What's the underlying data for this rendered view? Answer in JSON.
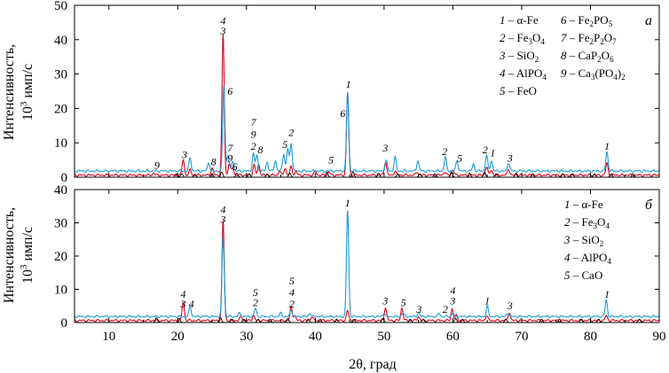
{
  "figure": {
    "xlabel": "2θ, град",
    "ylabel": "Интенсивность,",
    "ylabel_unit_prefix": "10",
    "ylabel_unit_exp": "3",
    "ylabel_unit_suffix": " имп/с"
  },
  "colors": {
    "red": "#e0001b",
    "blue": "#1a9ad6",
    "black": "#000000"
  },
  "chart_data": [
    {
      "type": "line",
      "panel_label": "а",
      "xlim": [
        5,
        90
      ],
      "ylim": [
        0,
        50
      ],
      "xticks": [
        10,
        20,
        30,
        40,
        50,
        60,
        70,
        80,
        90
      ],
      "yticks": [
        0,
        10,
        20,
        30,
        40,
        50
      ],
      "xtick_labels_shown": false,
      "grid": false,
      "legend": [
        {
          "num": "1",
          "sep": " – ",
          "parts": [
            [
              "α-Fe",
              ""
            ]
          ]
        },
        {
          "num": "2",
          "sep": " – ",
          "parts": [
            [
              "Fe",
              ""
            ],
            [
              "3",
              "sub"
            ],
            [
              "O",
              ""
            ],
            [
              "4",
              "sub"
            ]
          ]
        },
        {
          "num": "3",
          "sep": " – ",
          "parts": [
            [
              "SiO",
              ""
            ],
            [
              "2",
              "sub"
            ]
          ]
        },
        {
          "num": "4",
          "sep": " – ",
          "parts": [
            [
              "AlPO",
              ""
            ],
            [
              "4",
              "sub"
            ]
          ]
        },
        {
          "num": "5",
          "sep": " – ",
          "parts": [
            [
              "FeO",
              ""
            ]
          ]
        },
        {
          "num": "6",
          "sep": " – ",
          "parts": [
            [
              "Fe",
              ""
            ],
            [
              "2",
              "sub"
            ],
            [
              "PO",
              ""
            ],
            [
              "5",
              "sub"
            ]
          ]
        },
        {
          "num": "7",
          "sep": " – ",
          "parts": [
            [
              "Fe",
              ""
            ],
            [
              "2",
              "sub"
            ],
            [
              "P",
              ""
            ],
            [
              "2",
              "sub"
            ],
            [
              "O",
              ""
            ],
            [
              "7",
              "sub"
            ]
          ]
        },
        {
          "num": "8",
          "sep": " – ",
          "parts": [
            [
              "CaP",
              ""
            ],
            [
              "2",
              "sub"
            ],
            [
              "O",
              ""
            ],
            [
              "6",
              "sub"
            ]
          ]
        },
        {
          "num": "9",
          "sep": " – ",
          "parts": [
            [
              "Ca",
              ""
            ],
            [
              "3",
              "sub"
            ],
            [
              "(PO",
              ""
            ],
            [
              "4",
              "sub"
            ],
            [
              ")",
              ""
            ],
            [
              "2",
              "sub"
            ]
          ]
        }
      ],
      "series": [
        {
          "color": "red",
          "baseline": 0.6,
          "peaks": [
            [
              16.5,
              0.6
            ],
            [
              20.8,
              4.5
            ],
            [
              21.8,
              1.5
            ],
            [
              25.0,
              2.0
            ],
            [
              26.6,
              41
            ],
            [
              27.5,
              3.5
            ],
            [
              28.0,
              2.0
            ],
            [
              31.1,
              3.0
            ],
            [
              31.8,
              3.0
            ],
            [
              34.8,
              1.2
            ],
            [
              35.6,
              2.0
            ],
            [
              36.5,
              2.5
            ],
            [
              37.2,
              1.0
            ],
            [
              40.0,
              1.2
            ],
            [
              42.0,
              1.0
            ],
            [
              44.7,
              24
            ],
            [
              50.2,
              4.0
            ],
            [
              51.6,
              1.2
            ],
            [
              54.8,
              1.0
            ],
            [
              58.8,
              1.0
            ],
            [
              60.0,
              1.5
            ],
            [
              64.9,
              2.5
            ],
            [
              65.6,
              1.5
            ],
            [
              68.1,
              1.8
            ],
            [
              82.4,
              3.5
            ]
          ]
        },
        {
          "color": "blue",
          "baseline": 1.8,
          "peaks": [
            [
              21.8,
              3.8
            ],
            [
              24.5,
              2.5
            ],
            [
              26.7,
              25
            ],
            [
              27.3,
              4.5
            ],
            [
              28.0,
              3.0
            ],
            [
              31.0,
              5.0
            ],
            [
              31.5,
              4.5
            ],
            [
              33.0,
              2.5
            ],
            [
              34.2,
              3.0
            ],
            [
              35.4,
              5.0
            ],
            [
              36.0,
              6.5
            ],
            [
              36.5,
              8.0
            ],
            [
              44.7,
              23
            ],
            [
              50.3,
              3.0
            ],
            [
              51.6,
              4.0
            ],
            [
              54.9,
              3.0
            ],
            [
              58.9,
              4.0
            ],
            [
              60.6,
              3.0
            ],
            [
              63.0,
              2.0
            ],
            [
              64.9,
              4.5
            ],
            [
              65.6,
              3.0
            ],
            [
              68.1,
              2.5
            ],
            [
              82.4,
              5.5
            ]
          ]
        },
        {
          "color": "black",
          "baseline": 0.0,
          "peaks": [
            [
              19.8,
              1.0
            ],
            [
              20.6,
              1.0
            ],
            [
              22.5,
              0.8
            ],
            [
              25.0,
              1.0
            ],
            [
              26.4,
              1.5
            ],
            [
              28.6,
              1.2
            ],
            [
              30.4,
              1.0
            ],
            [
              33.0,
              1.0
            ],
            [
              36.3,
              1.2
            ],
            [
              41.7,
              1.5
            ],
            [
              45.5,
              1.5
            ],
            [
              49.2,
              1.2
            ],
            [
              52.0,
              1.0
            ],
            [
              55.2,
              1.0
            ],
            [
              57.4,
              1.0
            ],
            [
              59.8,
              1.5
            ],
            [
              62.4,
              1.2
            ],
            [
              64.6,
              1.5
            ],
            [
              66.3,
              1.0
            ],
            [
              69.2,
              1.2
            ],
            [
              71.6,
              1.0
            ],
            [
              76.0,
              1.0
            ],
            [
              77.4,
              1.0
            ],
            [
              80.6,
              1.0
            ],
            [
              83.0,
              1.0
            ],
            [
              86.2,
              1.0
            ]
          ]
        }
      ],
      "annotations": [
        {
          "x": 17.0,
          "y": 2.5,
          "text": "9"
        },
        {
          "x": 21.0,
          "y": 5.5,
          "text": "3"
        },
        {
          "x": 25.2,
          "y": 3.5,
          "text": "8"
        },
        {
          "x": 26.6,
          "y": 44.5,
          "text": "4"
        },
        {
          "x": 26.6,
          "y": 41.5,
          "text": "3"
        },
        {
          "x": 27.6,
          "y": 24.0,
          "text": "6"
        },
        {
          "x": 27.6,
          "y": 7.5,
          "text": "7"
        },
        {
          "x": 27.6,
          "y": 4.5,
          "text": "9"
        },
        {
          "x": 28.3,
          "y": 2.0,
          "text": "6"
        },
        {
          "x": 31.0,
          "y": 15.0,
          "text": "7"
        },
        {
          "x": 31.0,
          "y": 11.5,
          "text": "9"
        },
        {
          "x": 31.0,
          "y": 8.0,
          "text": "2"
        },
        {
          "x": 32.0,
          "y": 7.0,
          "text": "8"
        },
        {
          "x": 36.5,
          "y": 12.0,
          "text": "2"
        },
        {
          "x": 35.6,
          "y": 8.5,
          "text": "5"
        },
        {
          "x": 42.3,
          "y": 4.0,
          "text": "5"
        },
        {
          "x": 44.8,
          "y": 26.0,
          "text": "1"
        },
        {
          "x": 44.0,
          "y": 17.5,
          "text": "6"
        },
        {
          "x": 50.2,
          "y": 7.5,
          "text": "3"
        },
        {
          "x": 58.8,
          "y": 6.5,
          "text": "2"
        },
        {
          "x": 61.0,
          "y": 4.5,
          "text": "5"
        },
        {
          "x": 64.7,
          "y": 7.0,
          "text": "2"
        },
        {
          "x": 65.8,
          "y": 6.0,
          "text": "1"
        },
        {
          "x": 68.3,
          "y": 4.5,
          "text": "3"
        },
        {
          "x": 82.4,
          "y": 8.0,
          "text": "1"
        }
      ]
    },
    {
      "type": "line",
      "panel_label": "б",
      "xlim": [
        5,
        90
      ],
      "ylim": [
        0,
        40
      ],
      "xticks": [
        10,
        20,
        30,
        40,
        50,
        60,
        70,
        80,
        90
      ],
      "yticks": [
        0,
        10,
        20,
        30,
        40
      ],
      "xtick_labels_shown": true,
      "grid": false,
      "legend": [
        {
          "num": "1",
          "sep": " – ",
          "parts": [
            [
              "α-Fe",
              ""
            ]
          ]
        },
        {
          "num": "2",
          "sep": " – ",
          "parts": [
            [
              "Fe",
              ""
            ],
            [
              "3",
              "sub"
            ],
            [
              "O",
              ""
            ],
            [
              "4",
              "sub"
            ]
          ]
        },
        {
          "num": "3",
          "sep": " – ",
          "parts": [
            [
              "SiO",
              ""
            ],
            [
              "2",
              "sub"
            ]
          ]
        },
        {
          "num": "4",
          "sep": " – ",
          "parts": [
            [
              "AlPO",
              ""
            ],
            [
              "4",
              "sub"
            ]
          ]
        },
        {
          "num": "5",
          "sep": " – ",
          "parts": [
            [
              "CaO",
              ""
            ]
          ]
        }
      ],
      "series": [
        {
          "color": "red",
          "baseline": 0.6,
          "peaks": [
            [
              20.8,
              5.5
            ],
            [
              26.6,
              30
            ],
            [
              29.2,
              1.2
            ],
            [
              31.0,
              1.5
            ],
            [
              36.5,
              4.0
            ],
            [
              37.0,
              1.5
            ],
            [
              39.5,
              1.2
            ],
            [
              44.7,
              3.0
            ],
            [
              50.2,
              4.0
            ],
            [
              52.6,
              3.8
            ],
            [
              55.0,
              1.2
            ],
            [
              59.9,
              3.5
            ],
            [
              60.5,
              1.5
            ],
            [
              64.9,
              1.5
            ],
            [
              68.2,
              2.5
            ],
            [
              82.3,
              1.5
            ]
          ]
        },
        {
          "color": "blue",
          "baseline": 1.8,
          "peaks": [
            [
              21.8,
              3.0
            ],
            [
              26.6,
              24
            ],
            [
              29.0,
              1.0
            ],
            [
              31.3,
              2.5
            ],
            [
              35.0,
              1.0
            ],
            [
              36.5,
              2.0
            ],
            [
              39.2,
              1.0
            ],
            [
              44.7,
              32
            ],
            [
              50.0,
              1.2
            ],
            [
              52.7,
              1.2
            ],
            [
              55.0,
              1.2
            ],
            [
              58.0,
              1.0
            ],
            [
              60.0,
              1.0
            ],
            [
              65.0,
              3.0
            ],
            [
              68.0,
              1.0
            ],
            [
              82.3,
              5.0
            ]
          ]
        },
        {
          "color": "black",
          "baseline": 0.0,
          "peaks": [
            [
              16.9,
              1.5
            ],
            [
              20.2,
              1.2
            ],
            [
              26.2,
              1.5
            ],
            [
              27.9,
              1.0
            ],
            [
              29.6,
              1.0
            ],
            [
              31.7,
              1.0
            ],
            [
              33.4,
              1.0
            ],
            [
              36.0,
              1.2
            ],
            [
              39.0,
              1.0
            ],
            [
              40.7,
              1.0
            ],
            [
              43.1,
              1.0
            ],
            [
              45.6,
              1.0
            ],
            [
              49.8,
              1.2
            ],
            [
              53.8,
              1.0
            ],
            [
              55.7,
              1.0
            ],
            [
              60.4,
              1.2
            ],
            [
              61.4,
              1.0
            ],
            [
              67.7,
              1.0
            ],
            [
              72.9,
              1.0
            ],
            [
              75.5,
              1.0
            ],
            [
              78.7,
              1.0
            ],
            [
              81.2,
              1.0
            ],
            [
              87.1,
              1.0
            ]
          ]
        }
      ],
      "annotations": [
        {
          "x": 20.8,
          "y": 7.5,
          "text": "4"
        },
        {
          "x": 20.8,
          "y": 4.5,
          "text": "3"
        },
        {
          "x": 22.0,
          "y": 4.5,
          "text": "4"
        },
        {
          "x": 26.6,
          "y": 33.0,
          "text": "4"
        },
        {
          "x": 26.6,
          "y": 30.0,
          "text": "3"
        },
        {
          "x": 31.3,
          "y": 8.0,
          "text": "5"
        },
        {
          "x": 31.3,
          "y": 5.0,
          "text": "2"
        },
        {
          "x": 36.6,
          "y": 11.5,
          "text": "5"
        },
        {
          "x": 36.6,
          "y": 8.0,
          "text": "4"
        },
        {
          "x": 36.6,
          "y": 4.5,
          "text": "2"
        },
        {
          "x": 44.7,
          "y": 35.0,
          "text": "1"
        },
        {
          "x": 50.2,
          "y": 5.5,
          "text": "3"
        },
        {
          "x": 52.8,
          "y": 5.0,
          "text": "5"
        },
        {
          "x": 55.1,
          "y": 3.0,
          "text": "3"
        },
        {
          "x": 58.9,
          "y": 3.0,
          "text": "2"
        },
        {
          "x": 60.0,
          "y": 8.5,
          "text": "4"
        },
        {
          "x": 60.0,
          "y": 5.5,
          "text": "3"
        },
        {
          "x": 65.0,
          "y": 5.5,
          "text": "1"
        },
        {
          "x": 68.3,
          "y": 4.0,
          "text": "3"
        },
        {
          "x": 82.4,
          "y": 7.5,
          "text": "1"
        }
      ]
    }
  ]
}
